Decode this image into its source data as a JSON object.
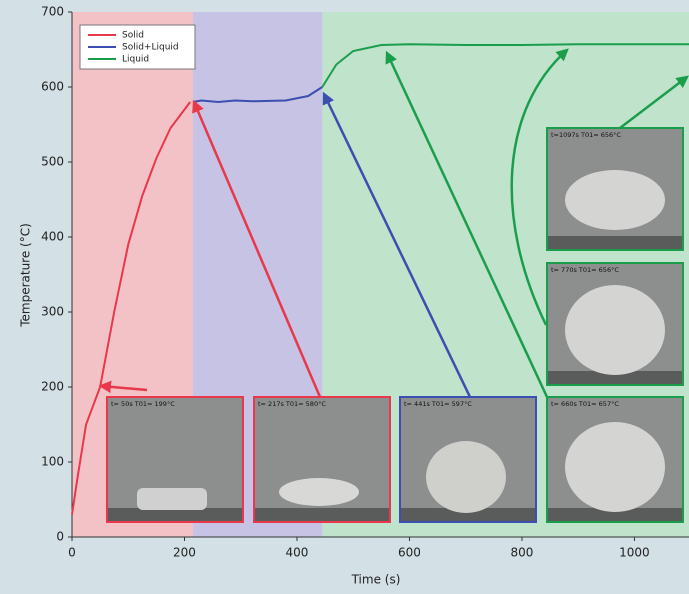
{
  "chart_data": {
    "type": "line",
    "x_label": "Time (s)",
    "y_label": "Temperature (°C)",
    "xlim": [
      0,
      1097
    ],
    "ylim": [
      0,
      700
    ],
    "xticks": [
      0,
      200,
      400,
      600,
      800,
      1000
    ],
    "yticks": [
      0,
      100,
      200,
      300,
      400,
      500,
      600,
      700
    ],
    "regions": [
      {
        "x": [
          0,
          215
        ],
        "color": "#f3c2c6"
      },
      {
        "x": [
          215,
          445
        ],
        "color": "#c7c3e5"
      },
      {
        "x": [
          445,
          1097
        ],
        "color": "#bfe3cb"
      }
    ],
    "series": [
      {
        "name": "Solid",
        "color": "#e8384a",
        "x": [
          0,
          10,
          25,
          50,
          75,
          100,
          125,
          150,
          175,
          200,
          210
        ],
        "values": [
          30,
          80,
          150,
          200,
          300,
          390,
          455,
          505,
          545,
          570,
          580
        ]
      },
      {
        "name": "Solid+Liquid",
        "color": "#3a4fb0",
        "x": [
          215,
          230,
          260,
          290,
          320,
          380,
          420,
          445
        ],
        "values": [
          580,
          582,
          580,
          582,
          581,
          582,
          588,
          600
        ]
      },
      {
        "name": "Liquid",
        "color": "#1a9e4c",
        "x": [
          445,
          470,
          500,
          550,
          600,
          700,
          800,
          900,
          1000,
          1097
        ],
        "values": [
          600,
          630,
          648,
          656,
          657,
          656,
          656,
          657,
          657,
          657
        ]
      }
    ],
    "insets": [
      {
        "label": "t=  50s  T01= 199°C",
        "color": "#e8384a"
      },
      {
        "label": "t= 217s  T01= 580°C",
        "color": "#e8384a"
      },
      {
        "label": "t= 441s  T01= 597°C",
        "color": "#3a4fb0"
      },
      {
        "label": "t= 660s  T01= 657°C",
        "color": "#1a9e4c"
      },
      {
        "label": "t= 770s  T01= 656°C",
        "color": "#1a9e4c"
      },
      {
        "label": "t=1097s  T01= 656°C",
        "color": "#1a9e4c"
      }
    ]
  }
}
